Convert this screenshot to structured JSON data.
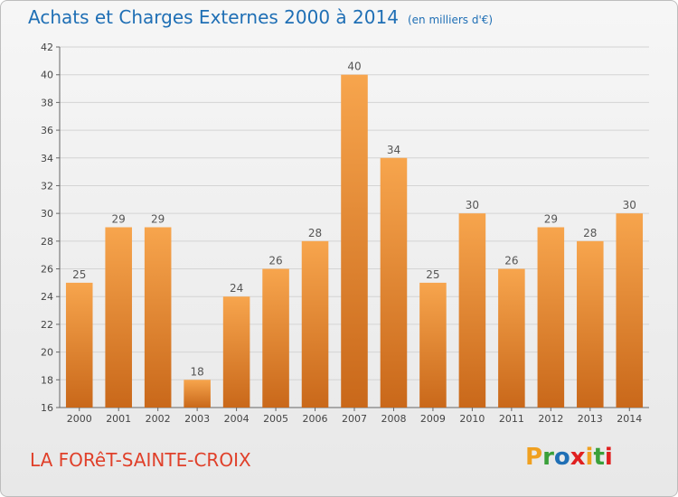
{
  "chart_data": {
    "type": "bar",
    "title": "Achats et Charges Externes 2000 à 2014",
    "subtitle": "(en milliers d'€)",
    "categories": [
      "2000",
      "2001",
      "2002",
      "2003",
      "2004",
      "2005",
      "2006",
      "2007",
      "2008",
      "2009",
      "2010",
      "2011",
      "2012",
      "2013",
      "2014"
    ],
    "values": [
      25,
      29,
      29,
      18,
      24,
      26,
      28,
      40,
      34,
      25,
      30,
      26,
      29,
      28,
      30
    ],
    "ylim": [
      16,
      42
    ],
    "yticks": [
      16,
      18,
      20,
      22,
      24,
      26,
      28,
      30,
      32,
      34,
      36,
      38,
      40,
      42
    ],
    "grid": true,
    "bar_color_top": "#f7a54d",
    "bar_color_bottom": "#c9681a"
  },
  "footer": {
    "place": "LA FORêT-SAINTE-CROIX",
    "brand_letters": [
      "P",
      "r",
      "o",
      "x",
      "i",
      "t",
      "i"
    ],
    "brand_colors": [
      "#f0a020",
      "#3aa03a",
      "#1f6fb5",
      "#e02020",
      "#f0a020",
      "#3aa03a",
      "#e02020"
    ]
  }
}
